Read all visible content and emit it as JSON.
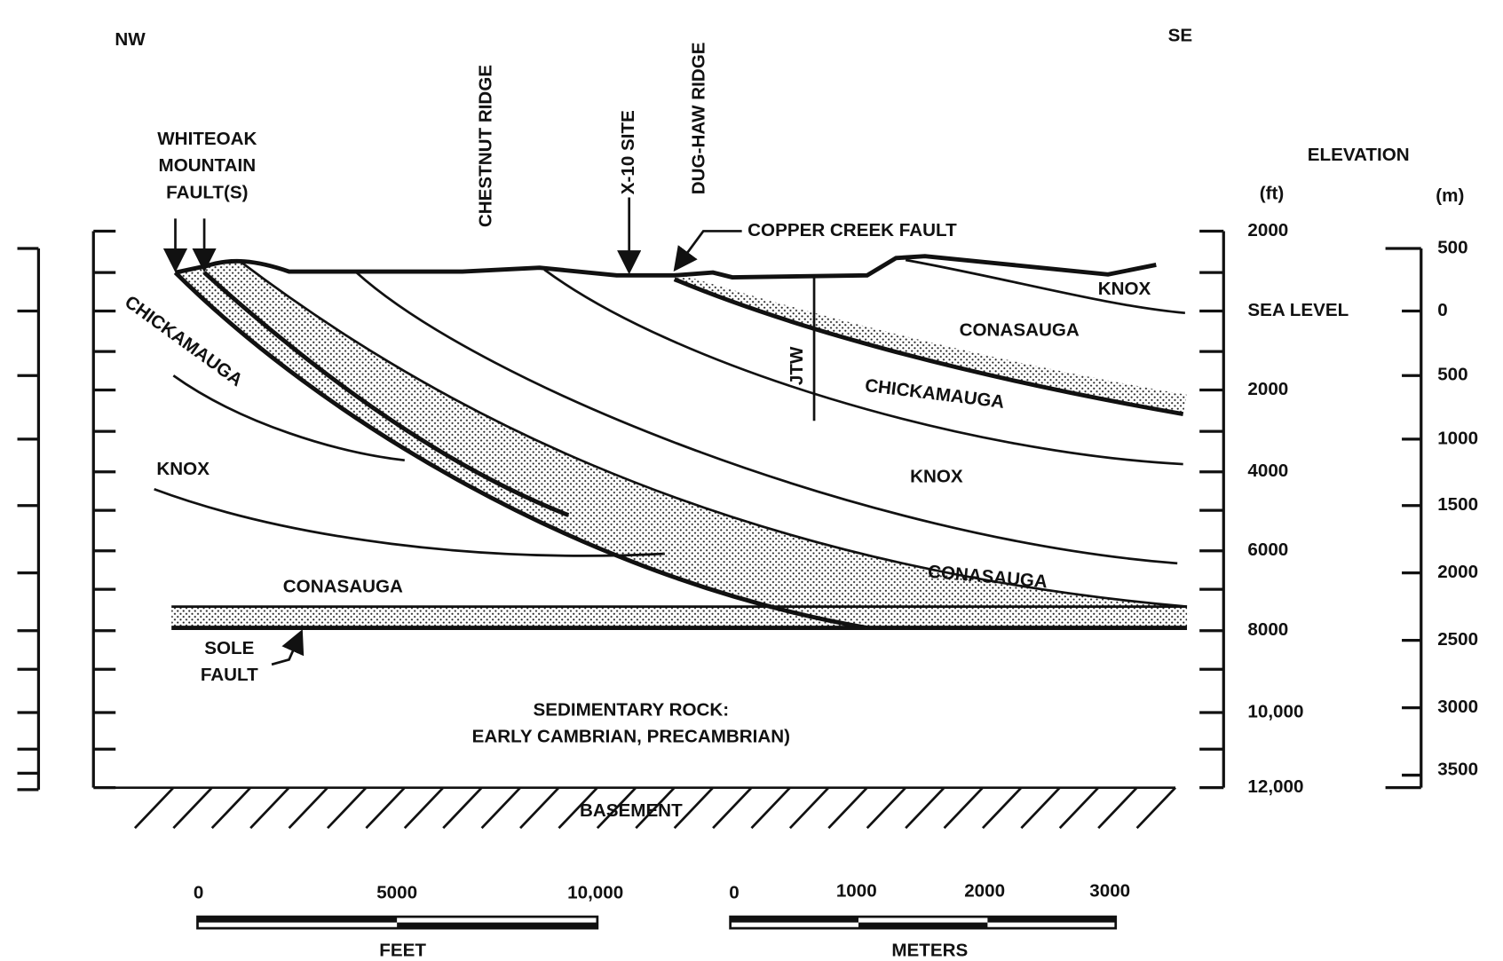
{
  "directions": {
    "left": "NW",
    "right": "SE"
  },
  "landmarks": {
    "whiteoak": [
      "WHITEOAK",
      "MOUNTAIN",
      "FAULT(S)"
    ],
    "chestnut": "CHESTNUT RIDGE",
    "x10": "X-10 SITE",
    "dughaw": "DUG-HAW RIDGE",
    "copper": "COPPER CREEK FAULT",
    "jtw": "JTW",
    "sole": [
      "SOLE",
      "FAULT"
    ]
  },
  "formations": {
    "knox_top": "KNOX",
    "conasauga_top": "CONASAUGA",
    "chickamauga_right": "CHICKAMAUGA",
    "chickamauga_left": "CHICKAMAUGA",
    "knox_left": "KNOX",
    "knox_mid": "KNOX",
    "conasauga_right": "CONASAUGA",
    "conasauga_left": "CONASAUGA",
    "sedimentary": [
      "SEDIMENTARY ROCK:",
      "EARLY CAMBRIAN, PRECAMBRIAN)"
    ],
    "basement": "BASEMENT"
  },
  "elevation": {
    "title": "ELEVATION",
    "ft_unit": "(ft)",
    "m_unit": "(m)",
    "ft_ticks": [
      "2000",
      "SEA LEVEL",
      "2000",
      "4000",
      "6000",
      "8000",
      "10,000",
      "12,000"
    ],
    "m_ticks": [
      "500",
      "0",
      "500",
      "1000",
      "1500",
      "2000",
      "2500",
      "3000",
      "3500"
    ]
  },
  "scales": {
    "feet": {
      "ticks": [
        "0",
        "5000",
        "10,000"
      ],
      "unit": "FEET"
    },
    "meters": {
      "ticks": [
        "0",
        "1000",
        "2000",
        "3000"
      ],
      "unit": "METERS"
    }
  }
}
